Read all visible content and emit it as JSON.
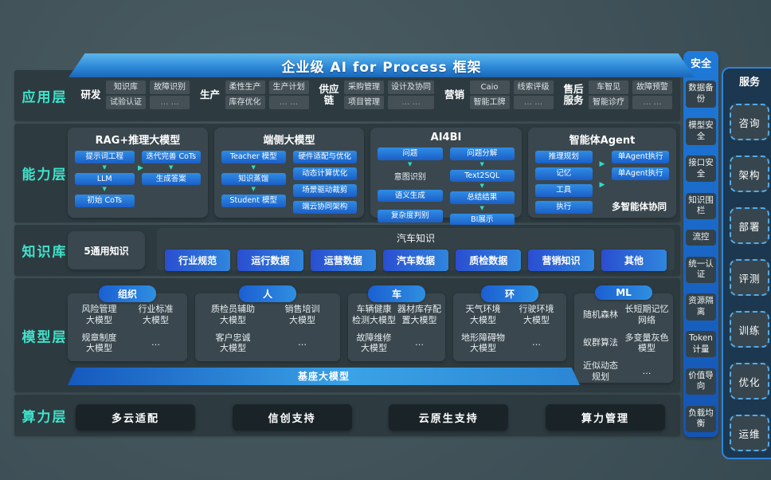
{
  "title": "企业级 AI for Process 框架",
  "icons": {
    "down": "▼",
    "right": "▶"
  },
  "colors": {
    "accent_cyan": "#3fe3cb",
    "box_blue": "#1f6fd4",
    "banner_blue": "#2e8ad9",
    "band_bg": "#2d3b41"
  },
  "layer_labels": {
    "app": "应用层",
    "capability": "能力层",
    "knowledge": "知识库",
    "model": "模型层",
    "compute": "算力层"
  },
  "app": {
    "groups": [
      {
        "label": "研发",
        "s1a": "知识库",
        "s1b": "试验认证",
        "s2a": "故障识别",
        "s2b": "… …"
      },
      {
        "label": "生产",
        "s1a": "柔性生产",
        "s1b": "库存优化",
        "s2a": "生产计划",
        "s2b": "… …"
      },
      {
        "label": "供应链",
        "s1a": "采购管理",
        "s1b": "项目管理",
        "s2a": "设计及协同",
        "s2b": "… …"
      },
      {
        "label": "营销",
        "s1a": "Caio",
        "s1b": "智能工牌",
        "s2a": "线索评级",
        "s2b": "… …"
      },
      {
        "label": "售后服务",
        "s1a": "车智见",
        "s1b": "智能诊疗",
        "s2a": "故障预警",
        "s2b": "… …"
      }
    ]
  },
  "capability": {
    "rag": {
      "title": "RAG+推理大模型",
      "steps": [
        "提示词工程",
        "LLM",
        "初始 CoTs"
      ],
      "right": [
        "迭代完善 CoTs",
        "生成答案"
      ]
    },
    "edge": {
      "title": "端侧大模型",
      "steps": [
        "Teacher 模型",
        "知识蒸馏",
        "Student 模型"
      ],
      "right": [
        "硬件适配与优化",
        "动态计算优化",
        "场景驱动裁剪",
        "端云协同架构"
      ]
    },
    "ai4bi": {
      "title": "AI4BI",
      "q": "问题",
      "intent": "意图识别",
      "sem": "语义生成",
      "complexity": "复杂度判别",
      "right": [
        "问题分解",
        "Text2SQL",
        "总结结果",
        "BI展示"
      ]
    },
    "agent": {
      "title": "智能体Agent",
      "left": [
        "推理规划",
        "记忆",
        "工具",
        "执行"
      ],
      "right": [
        "单Agent执行",
        "单Agent执行"
      ],
      "caption": "多智能体协同"
    }
  },
  "knowledge": {
    "general": "5通用知识",
    "auto_title": "汽车知识",
    "pills": [
      "行业规范",
      "运行数据",
      "运营数据",
      "汽车数据",
      "质检数据",
      "营销知识",
      "其他"
    ]
  },
  "model": {
    "groups": [
      {
        "header": "组织",
        "items": [
          "风险管理\n大模型",
          "行业标准\n大模型",
          "规章制度\n大模型",
          "…"
        ]
      },
      {
        "header": "人",
        "items": [
          "质检员辅助\n大模型",
          "销售培训\n大模型",
          "客户忠诚\n大模型",
          "…"
        ]
      },
      {
        "header": "车",
        "items": [
          "车辆健康\n检测大模型",
          "器材库存配\n置大模型",
          "故障维修\n大模型",
          "…"
        ]
      },
      {
        "header": "环",
        "items": [
          "天气环境\n大模型",
          "行驶环境\n大模型",
          "地形障碍物\n大模型",
          "…"
        ]
      },
      {
        "header": "ML",
        "items": [
          "随机森林",
          "长短期记忆\n网络",
          "蚁群算法",
          "多变量灰色\n模型",
          "近似动态\n规划",
          "…"
        ]
      }
    ],
    "foundation": "基座大模型"
  },
  "compute": {
    "items": [
      "多云适配",
      "信创支持",
      "云原生支持",
      "算力管理"
    ]
  },
  "security": {
    "title": "安全",
    "items": [
      "数据备份",
      "模型安全",
      "接口安全",
      "知识围栏",
      "流控",
      "统一认证",
      "资源隔离",
      "Token计量",
      "价值导向",
      "负载均衡"
    ]
  },
  "services": {
    "title": "服务",
    "items": [
      "咨询",
      "架构",
      "部署",
      "评测",
      "训练",
      "优化",
      "运维"
    ]
  }
}
